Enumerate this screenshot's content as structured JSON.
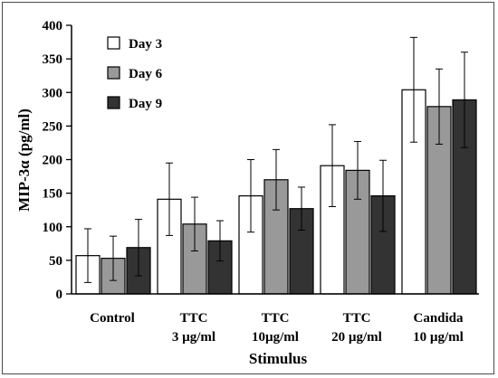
{
  "chart_data": {
    "type": "bar",
    "xlabel": "Stimulus",
    "ylabel": "MIP-3α (pg/ml)",
    "ylim": [
      0,
      400
    ],
    "yticks": [
      0,
      50,
      100,
      150,
      200,
      250,
      300,
      350,
      400
    ],
    "grid": false,
    "legend_position": "top-left",
    "categories": [
      {
        "line1": "Control",
        "line2": ""
      },
      {
        "line1": "TTC",
        "line2": "3 µg/ml"
      },
      {
        "line1": "TTC",
        "line2": "10µg/ml"
      },
      {
        "line1": "TTC",
        "line2": "20 µg/ml"
      },
      {
        "line1": "Candida",
        "line2": "10 µg/ml"
      }
    ],
    "series": [
      {
        "name": "Day 3",
        "color": "#ffffff",
        "values": [
          57,
          141,
          146,
          191,
          304
        ],
        "errors": [
          40,
          54,
          54,
          61,
          78
        ]
      },
      {
        "name": "Day 6",
        "color": "#999999",
        "values": [
          53,
          104,
          170,
          184,
          279
        ],
        "errors": [
          33,
          40,
          45,
          43,
          56
        ]
      },
      {
        "name": "Day 9",
        "color": "#333333",
        "values": [
          69,
          79,
          127,
          146,
          289
        ],
        "errors": [
          42,
          30,
          32,
          53,
          71
        ]
      }
    ]
  }
}
